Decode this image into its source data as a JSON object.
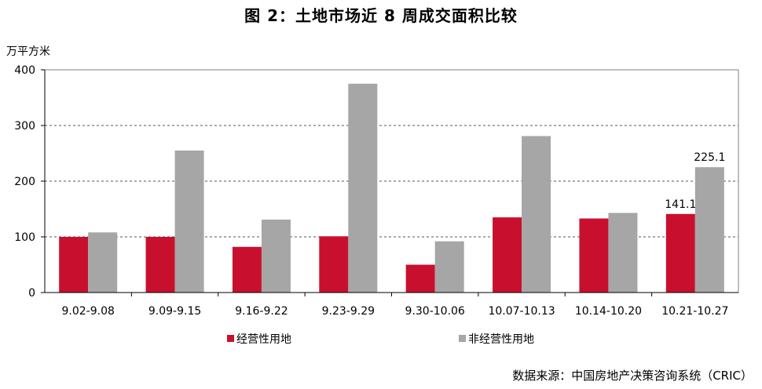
{
  "title": "图 2：土地市场近 8 周成交面积比较",
  "source": "数据来源：中国房地产决策咨询系统（CRIC）",
  "colors": {
    "series1": "#c8102e",
    "series2": "#a6a6a6",
    "grid": "#555555",
    "axis": "#000000"
  },
  "chart_data": {
    "type": "bar",
    "ylabel": "万平方米",
    "ylim": [
      0,
      400
    ],
    "yticks": [
      0,
      100,
      200,
      300,
      400
    ],
    "categories": [
      "9.02-9.08",
      "9.09-9.15",
      "9.16-9.22",
      "9.23-9.29",
      "9.30-10.06",
      "10.07-10.13",
      "10.14-10.20",
      "10.21-10.27"
    ],
    "series": [
      {
        "name": "经营性用地",
        "values": [
          100,
          100,
          82,
          101,
          50,
          135,
          133,
          141.1
        ],
        "labels": [
          "",
          "",
          "",
          "",
          "",
          "",
          "",
          "141.1"
        ]
      },
      {
        "name": "非经营性用地",
        "values": [
          108,
          255,
          131,
          375,
          92,
          281,
          143,
          225.1
        ],
        "labels": [
          "",
          "",
          "",
          "",
          "",
          "",
          "",
          "225.1"
        ]
      }
    ],
    "grid": "dashed horizontal",
    "legend": "bottom"
  }
}
